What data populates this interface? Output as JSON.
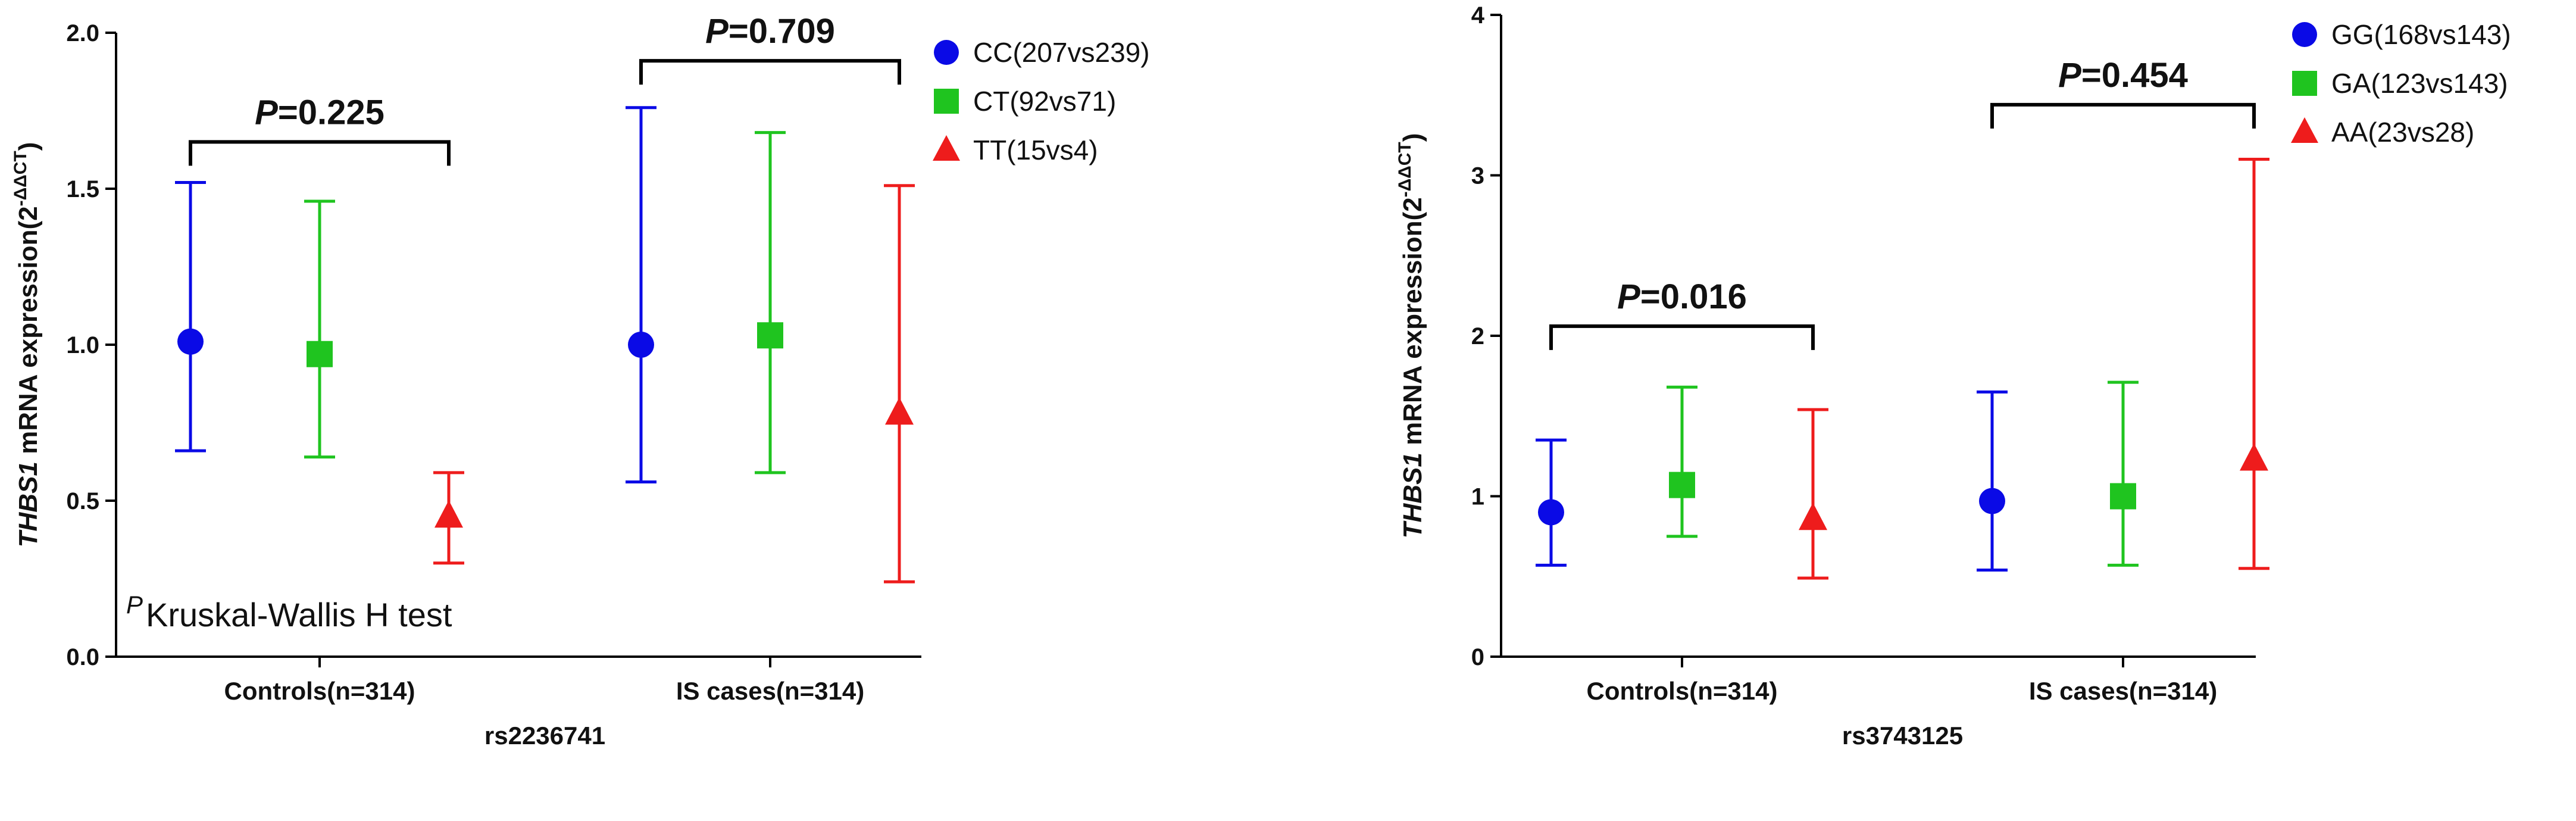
{
  "footnote": {
    "superscript": "P",
    "text": "Kruskal-Wallis H test"
  },
  "chart_data": [
    {
      "type": "errorbar",
      "title": "",
      "xlabel": "rs2236741",
      "ylabel": {
        "gene": "THBS1",
        "rest": " mRNA expression(2",
        "superscript": "-ΔΔCT",
        "close": ")"
      },
      "ylim": [
        0,
        2.0
      ],
      "yticks": [
        "0.0",
        "0.5",
        "1.0",
        "1.5",
        "2.0"
      ],
      "ytick_values": [
        0,
        0.5,
        1.0,
        1.5,
        2.0
      ],
      "categories": [
        "Controls(n=314)",
        "IS cases(n=314)"
      ],
      "series": [
        {
          "name": "CC(207vs239)",
          "marker": "circle",
          "color": "#0a0ae6",
          "values": [
            1.01,
            1.0
          ],
          "lower": [
            0.66,
            0.56
          ],
          "upper": [
            1.52,
            1.76
          ]
        },
        {
          "name": "CT(92vs71)",
          "marker": "square",
          "color": "#1fc41f",
          "values": [
            0.97,
            1.03
          ],
          "lower": [
            0.64,
            0.59
          ],
          "upper": [
            1.46,
            1.68
          ]
        },
        {
          "name": "TT(15vs4)",
          "marker": "triangle",
          "color": "#ee1c1c",
          "values": [
            0.45,
            0.78
          ],
          "lower": [
            0.3,
            0.24
          ],
          "upper": [
            0.59,
            1.51
          ]
        }
      ],
      "brackets": [
        {
          "category": 0,
          "label_p": "P",
          "label_rest": "=0.225",
          "at": 1.65
        },
        {
          "category": 1,
          "label_p": "P",
          "label_rest": "=0.709",
          "at": 1.91
        }
      ],
      "legend_position": "top-right"
    },
    {
      "type": "errorbar",
      "title": "",
      "xlabel": "rs3743125",
      "ylabel": {
        "gene": "THBS1",
        "rest": " mRNA expression(2",
        "superscript": "-ΔΔCT",
        "close": ")"
      },
      "ylim": [
        0,
        4
      ],
      "yticks": [
        "0",
        "1",
        "2",
        "3",
        "4"
      ],
      "ytick_values": [
        0,
        1,
        2,
        3,
        4
      ],
      "categories": [
        "Controls(n=314)",
        "IS cases(n=314)"
      ],
      "series": [
        {
          "name": "GG(168vs143)",
          "marker": "circle",
          "color": "#0a0ae6",
          "values": [
            0.9,
            0.97
          ],
          "lower": [
            0.57,
            0.54
          ],
          "upper": [
            1.35,
            1.65
          ]
        },
        {
          "name": "GA(123vs143)",
          "marker": "square",
          "color": "#1fc41f",
          "values": [
            1.07,
            1.0
          ],
          "lower": [
            0.75,
            0.57
          ],
          "upper": [
            1.68,
            1.71
          ]
        },
        {
          "name": "AA(23vs28)",
          "marker": "triangle",
          "color": "#ee1c1c",
          "values": [
            0.86,
            1.23
          ],
          "lower": [
            0.49,
            0.55
          ],
          "upper": [
            1.54,
            3.1
          ]
        }
      ],
      "brackets": [
        {
          "category": 0,
          "label_p": "P",
          "label_rest": "=0.016",
          "at": 2.06
        },
        {
          "category": 1,
          "label_p": "P",
          "label_rest": "=0.454",
          "at": 3.44
        }
      ],
      "legend_position": "top-right"
    }
  ]
}
